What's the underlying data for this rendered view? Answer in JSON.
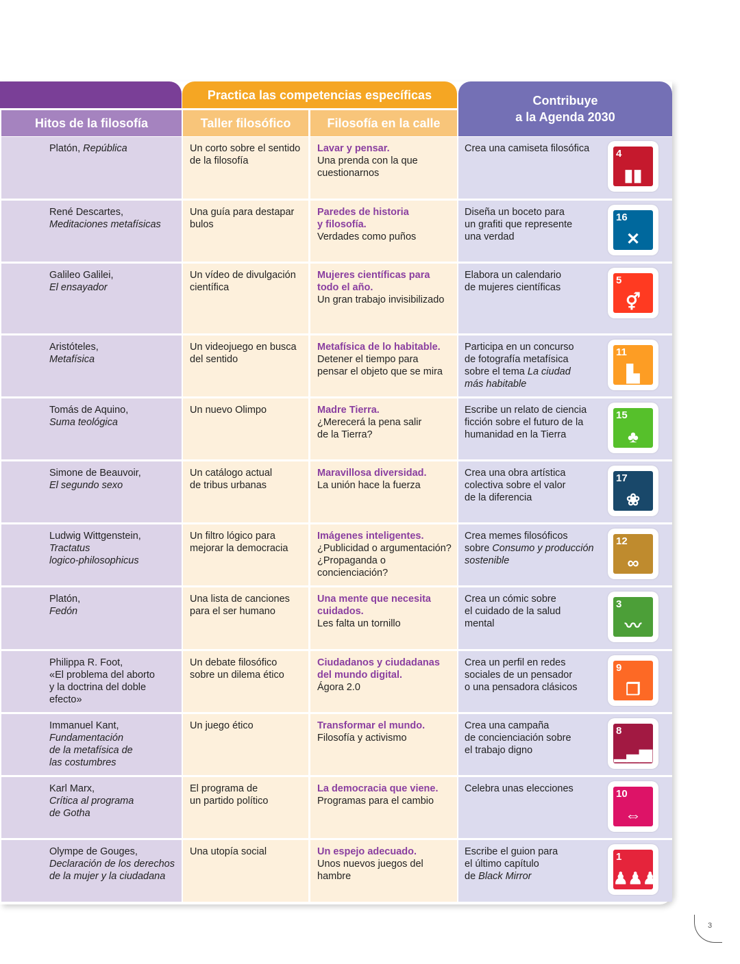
{
  "header": {
    "practice": "Practica las competencias específicas",
    "agenda": "Contribuye\na la Agenda 2030",
    "col_hitos": "Hitos de la filosofía",
    "col_taller": "Taller filosófico",
    "col_calle": "Filosofía en la calle"
  },
  "rows": [
    {
      "author": "Platón, ",
      "work": "República",
      "taller": "Un corto sobre el sentido\nde la filosofía",
      "calle_title": "Lavar y pensar.",
      "calle_text": "Una prenda con la que\ncuestionarnos",
      "agenda": "Crea una camiseta filosófica",
      "agenda_it": "",
      "agenda_post": "",
      "sdg": "4",
      "sdg_color": "#c5192d",
      "sdg_icon": "book-icon"
    },
    {
      "author": "René Descartes,\n",
      "work": "Meditaciones metafísicas",
      "taller": "Una guía para destapar\nbulos",
      "calle_title": "Paredes de historia\ny filosofía.",
      "calle_text": "Verdades como puños",
      "agenda": "Diseña un boceto para\nun grafiti que represente\nuna verdad",
      "agenda_it": "",
      "agenda_post": "",
      "sdg": "16",
      "sdg_color": "#00689d",
      "sdg_icon": "dove-icon"
    },
    {
      "author": "Galileo Galilei,\n",
      "work": "El ensayador",
      "taller": "Un vídeo de divulgación\ncientífica",
      "calle_title": "Mujeres científicas para\ntodo el año.",
      "calle_text": "Un gran trabajo invisibilizado",
      "agenda": "Elabora un calendario\nde mujeres científicas",
      "agenda_it": "",
      "agenda_post": "",
      "sdg": "5",
      "sdg_color": "#ff3a21",
      "sdg_icon": "gender-icon"
    },
    {
      "author": "Aristóteles,\n",
      "work": "Metafísica",
      "taller": "Un videojuego en busca\ndel sentido",
      "calle_title": "Metafísica de lo habitable.",
      "calle_text": "Detener el tiempo para\npensar el objeto que se mira",
      "agenda": "Participa en un concurso\nde fotografía metafísica\nsobre el tema ",
      "agenda_it": "La ciudad\nmás habitable",
      "agenda_post": "",
      "sdg": "11",
      "sdg_color": "#fd9d24",
      "sdg_icon": "city-icon"
    },
    {
      "author": "Tomás de Aquino,\n",
      "work": "Suma teológica",
      "taller": "Un nuevo Olimpo",
      "calle_title": "Madre Tierra.",
      "calle_text": "¿Merecerá la pena salir\nde la Tierra?",
      "agenda": "Escribe un relato de ciencia\nficción sobre el futuro de la\nhumanidad en la Tierra",
      "agenda_it": "",
      "agenda_post": "",
      "sdg": "15",
      "sdg_color": "#56c02b",
      "sdg_icon": "tree-icon"
    },
    {
      "author": "Simone de Beauvoir,\n",
      "work": "El segundo sexo",
      "taller": "Un catálogo actual\nde tribus urbanas",
      "calle_title": "Maravillosa diversidad.",
      "calle_text": "La unión hace la fuerza",
      "agenda": "Crea una obra artística\ncolectiva sobre el valor\nde la diferencia",
      "agenda_it": "",
      "agenda_post": "",
      "sdg": "17",
      "sdg_color": "#19486a",
      "sdg_icon": "flower-icon"
    },
    {
      "author": "Ludwig Wittgenstein,\n",
      "work": "Tractatus\nlogico-philosophicus",
      "taller": "Un filtro lógico para\nmejorar la democracia",
      "calle_title": "Imágenes inteligentes.",
      "calle_text": "¿Publicidad o argumentación?\n¿Propaganda o\nconcienciación?",
      "agenda": "Crea memes filosóficos\nsobre ",
      "agenda_it": "Consumo y producción\nsostenible",
      "agenda_post": "",
      "sdg": "12",
      "sdg_color": "#bf8b2e",
      "sdg_icon": "infinity-icon"
    },
    {
      "author": "Platón,\n",
      "work": "Fedón",
      "taller": "Una lista de canciones\npara el ser humano",
      "calle_title": "Una mente que necesita\ncuidados.",
      "calle_text": "Les falta un tornillo",
      "agenda": "Crea un cómic sobre\nel cuidado de la salud\nmental",
      "agenda_it": "",
      "agenda_post": "",
      "sdg": "3",
      "sdg_color": "#4c9f38",
      "sdg_icon": "heartbeat-icon"
    },
    {
      "author": "Philippa R. Foot,\n«El problema del aborto\ny la doctrina del doble\nefecto»",
      "work": "",
      "taller": "Un debate filosófico\nsobre un dilema ético",
      "calle_title": "Ciudadanos y ciudadanas\ndel mundo digital.",
      "calle_text": "Ágora 2.0",
      "agenda": "Crea un perfil en redes\nsociales de un pensador\no una pensadora clásicos",
      "agenda_it": "",
      "agenda_post": "",
      "sdg": "9",
      "sdg_color": "#fd6925",
      "sdg_icon": "cubes-icon"
    },
    {
      "author": "Immanuel Kant,\n",
      "work": "Fundamentación\nde la metafísica de\nlas costumbres",
      "taller": "Un juego ético",
      "calle_title": "Transformar el mundo.",
      "calle_text": "Filosofía y activismo",
      "agenda": "Crea una campaña\nde concienciación sobre\nel trabajo digno",
      "agenda_it": "",
      "agenda_post": "",
      "sdg": "8",
      "sdg_color": "#a21942",
      "sdg_icon": "growth-chart-icon"
    },
    {
      "author": "Karl Marx,\n",
      "work": "Crítica al programa\nde Gotha",
      "taller": "El programa de\nun partido político",
      "calle_title": "La democracia que viene.",
      "calle_text": "Programas para el cambio",
      "agenda": "Celebra unas elecciones",
      "agenda_it": "",
      "agenda_post": "",
      "sdg": "10",
      "sdg_color": "#dd1367",
      "sdg_icon": "equality-icon"
    },
    {
      "author": "Olympe de Gouges,\n",
      "work": "Declaración de los derechos\nde la mujer y la ciudadana",
      "taller": "Una utopía social",
      "calle_title": "Un espejo adecuado.",
      "calle_text": "Unos nuevos juegos del\nhambre",
      "agenda": "Escribe el guion para\nel último capítulo\nde ",
      "agenda_it": "Black Mirror",
      "agenda_post": "",
      "sdg": "1",
      "sdg_color": "#e5243b",
      "sdg_icon": "family-icon"
    }
  ],
  "page_number": "3"
}
